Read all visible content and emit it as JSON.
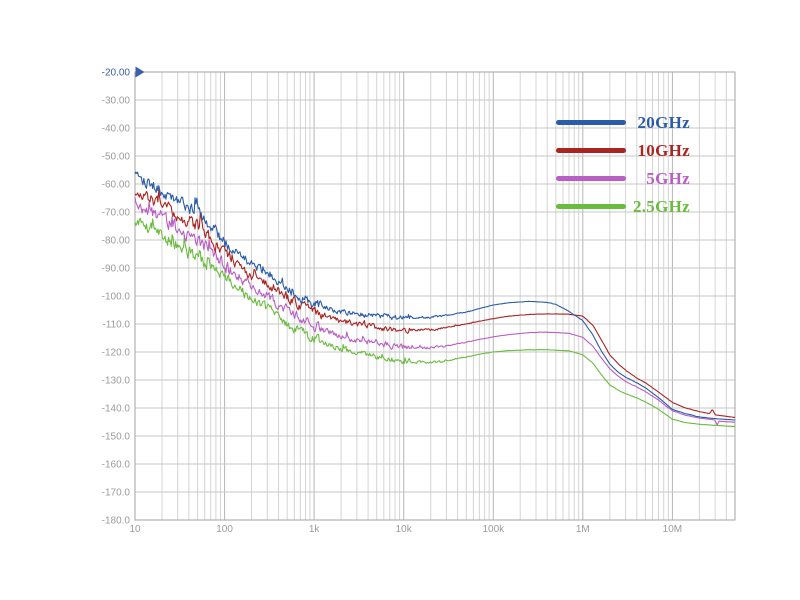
{
  "chart_data": {
    "type": "line",
    "title": "",
    "xlabel": "",
    "ylabel": "",
    "x_scale": "log",
    "x_range": [
      10,
      50000000
    ],
    "y_range": [
      -180,
      -20
    ],
    "grid": true,
    "legend_position": "upper-right-inside",
    "x_ticks": [
      {
        "v": 10,
        "label": "10"
      },
      {
        "v": 100,
        "label": "100"
      },
      {
        "v": 1000,
        "label": "1k"
      },
      {
        "v": 10000,
        "label": "10k"
      },
      {
        "v": 100000,
        "label": "100k"
      },
      {
        "v": 1000000,
        "label": "1M"
      },
      {
        "v": 10000000,
        "label": "10M"
      }
    ],
    "y_ticks": [
      {
        "v": -20,
        "label": "-20.00"
      },
      {
        "v": -30,
        "label": "-30.00"
      },
      {
        "v": -40,
        "label": "-40.00"
      },
      {
        "v": -50,
        "label": "-50.00"
      },
      {
        "v": -60,
        "label": "-60.00"
      },
      {
        "v": -70,
        "label": "-70.00"
      },
      {
        "v": -80,
        "label": "-80.00"
      },
      {
        "v": -90,
        "label": "-90.00"
      },
      {
        "v": -100,
        "label": "-100.0"
      },
      {
        "v": -110,
        "label": "-110.0"
      },
      {
        "v": -120,
        "label": "-120.0"
      },
      {
        "v": -130,
        "label": "-130.0"
      },
      {
        "v": -140,
        "label": "-140.0"
      },
      {
        "v": -150,
        "label": "-150.0"
      },
      {
        "v": -160,
        "label": "-160.0"
      },
      {
        "v": -170,
        "label": "-170.0"
      },
      {
        "v": -180,
        "label": "-180.0"
      }
    ],
    "axis_marker": {
      "label": "-20.00",
      "value": -20,
      "color": "#3a5fae",
      "shape": "right-triangle"
    },
    "tick_label_color": "#9b9b9b",
    "series": [
      {
        "name": "20GHz",
        "color": "#2a5ca8",
        "points": [
          [
            10,
            -55
          ],
          [
            15,
            -60
          ],
          [
            20,
            -63
          ],
          [
            30,
            -66
          ],
          [
            50,
            -70
          ],
          [
            70,
            -75
          ],
          [
            100,
            -81
          ],
          [
            150,
            -85.5
          ],
          [
            200,
            -88.5
          ],
          [
            300,
            -91.5
          ],
          [
            500,
            -97
          ],
          [
            700,
            -100
          ],
          [
            1000,
            -103
          ],
          [
            2000,
            -105.5
          ],
          [
            3000,
            -106.2
          ],
          [
            5000,
            -106.9
          ],
          [
            10000,
            -107.9
          ],
          [
            20000,
            -107.6
          ],
          [
            30000,
            -107
          ],
          [
            50000,
            -105.8
          ],
          [
            70000,
            -104.5
          ],
          [
            100000,
            -103.2
          ],
          [
            150000,
            -102.4
          ],
          [
            250000,
            -101.9
          ],
          [
            400000,
            -102.3
          ],
          [
            500000,
            -103
          ],
          [
            700000,
            -105.5
          ],
          [
            1000000,
            -108.8
          ],
          [
            1300000,
            -114
          ],
          [
            1600000,
            -119.5
          ],
          [
            2000000,
            -124.3
          ],
          [
            2500000,
            -127.3
          ],
          [
            3000000,
            -129
          ],
          [
            4000000,
            -131
          ],
          [
            5000000,
            -132.8
          ],
          [
            7000000,
            -136.3
          ],
          [
            10000000,
            -140.5
          ],
          [
            14000000,
            -142
          ],
          [
            20000000,
            -143.2
          ],
          [
            30000000,
            -143.8
          ],
          [
            50000000,
            -144.3
          ]
        ]
      },
      {
        "name": "10GHz",
        "color": "#aa2420",
        "points": [
          [
            10,
            -62
          ],
          [
            15,
            -65.5
          ],
          [
            20,
            -68
          ],
          [
            30,
            -71
          ],
          [
            50,
            -75
          ],
          [
            70,
            -80
          ],
          [
            100,
            -85
          ],
          [
            150,
            -89.5
          ],
          [
            200,
            -92.5
          ],
          [
            300,
            -95.5
          ],
          [
            500,
            -100.5
          ],
          [
            700,
            -103
          ],
          [
            1000,
            -105.7
          ],
          [
            2000,
            -108.8
          ],
          [
            3000,
            -110
          ],
          [
            5000,
            -111.2
          ],
          [
            10000,
            -112.2
          ],
          [
            20000,
            -112
          ],
          [
            30000,
            -111.3
          ],
          [
            50000,
            -110
          ],
          [
            70000,
            -109
          ],
          [
            100000,
            -108.1
          ],
          [
            150000,
            -107.2
          ],
          [
            250000,
            -106.6
          ],
          [
            400000,
            -106.4
          ],
          [
            700000,
            -106.5
          ],
          [
            1000000,
            -107.2
          ],
          [
            1300000,
            -110.5
          ],
          [
            1600000,
            -115.5
          ],
          [
            2000000,
            -121
          ],
          [
            2500000,
            -124.3
          ],
          [
            3000000,
            -126.5
          ],
          [
            4000000,
            -129.3
          ],
          [
            5000000,
            -131
          ],
          [
            7000000,
            -134.3
          ],
          [
            10000000,
            -138
          ],
          [
            14000000,
            -140
          ],
          [
            20000000,
            -141.3
          ],
          [
            26000000,
            -142
          ],
          [
            28000000,
            -140.5
          ],
          [
            30000000,
            -142.4
          ],
          [
            40000000,
            -143
          ],
          [
            50000000,
            -143.4
          ]
        ]
      },
      {
        "name": "5GHz",
        "color": "#b95ec4",
        "points": [
          [
            10,
            -66.5
          ],
          [
            15,
            -70
          ],
          [
            20,
            -72
          ],
          [
            30,
            -76
          ],
          [
            50,
            -80
          ],
          [
            70,
            -84.5
          ],
          [
            100,
            -89
          ],
          [
            150,
            -93.5
          ],
          [
            200,
            -96.5
          ],
          [
            300,
            -100
          ],
          [
            500,
            -105
          ],
          [
            700,
            -108
          ],
          [
            1000,
            -111
          ],
          [
            2000,
            -114.5
          ],
          [
            3000,
            -115.8
          ],
          [
            5000,
            -116.9
          ],
          [
            10000,
            -118.3
          ],
          [
            20000,
            -118.4
          ],
          [
            30000,
            -117.8
          ],
          [
            50000,
            -116.5
          ],
          [
            70000,
            -115.5
          ],
          [
            100000,
            -114.6
          ],
          [
            150000,
            -113.8
          ],
          [
            250000,
            -113.1
          ],
          [
            400000,
            -112.9
          ],
          [
            700000,
            -113.3
          ],
          [
            1000000,
            -114.8
          ],
          [
            1300000,
            -118
          ],
          [
            1600000,
            -122
          ],
          [
            2000000,
            -126
          ],
          [
            2500000,
            -128.7
          ],
          [
            3000000,
            -130.5
          ],
          [
            4000000,
            -132.5
          ],
          [
            5000000,
            -134.1
          ],
          [
            7000000,
            -137.2
          ],
          [
            10000000,
            -141
          ],
          [
            14000000,
            -142.6
          ],
          [
            20000000,
            -143.6
          ],
          [
            30000000,
            -144.3
          ],
          [
            31500000,
            -146.3
          ],
          [
            33000000,
            -144.7
          ],
          [
            40000000,
            -144.9
          ],
          [
            50000000,
            -145.1
          ]
        ]
      },
      {
        "name": "2.5GHz",
        "color": "#6abc3e",
        "points": [
          [
            10,
            -73
          ],
          [
            15,
            -76.5
          ],
          [
            20,
            -78.5
          ],
          [
            30,
            -82
          ],
          [
            50,
            -86
          ],
          [
            70,
            -90
          ],
          [
            100,
            -94
          ],
          [
            150,
            -98
          ],
          [
            200,
            -101
          ],
          [
            300,
            -104.5
          ],
          [
            500,
            -110
          ],
          [
            700,
            -112.8
          ],
          [
            1000,
            -115.5
          ],
          [
            2000,
            -119
          ],
          [
            3000,
            -120.3
          ],
          [
            5000,
            -121.9
          ],
          [
            10000,
            -123.4
          ],
          [
            20000,
            -123.8
          ],
          [
            30000,
            -123.2
          ],
          [
            50000,
            -121.8
          ],
          [
            70000,
            -120.8
          ],
          [
            100000,
            -120
          ],
          [
            150000,
            -119.5
          ],
          [
            250000,
            -119.2
          ],
          [
            400000,
            -119.2
          ],
          [
            700000,
            -119.6
          ],
          [
            1000000,
            -121
          ],
          [
            1300000,
            -124
          ],
          [
            1600000,
            -128
          ],
          [
            2000000,
            -131.8
          ],
          [
            2500000,
            -133.7
          ],
          [
            3000000,
            -134.9
          ],
          [
            4000000,
            -136.4
          ],
          [
            5000000,
            -137.8
          ],
          [
            7000000,
            -140.5
          ],
          [
            10000000,
            -144
          ],
          [
            14000000,
            -145.2
          ],
          [
            20000000,
            -145.8
          ],
          [
            30000000,
            -146.2
          ],
          [
            50000000,
            -146.6
          ]
        ]
      }
    ]
  }
}
